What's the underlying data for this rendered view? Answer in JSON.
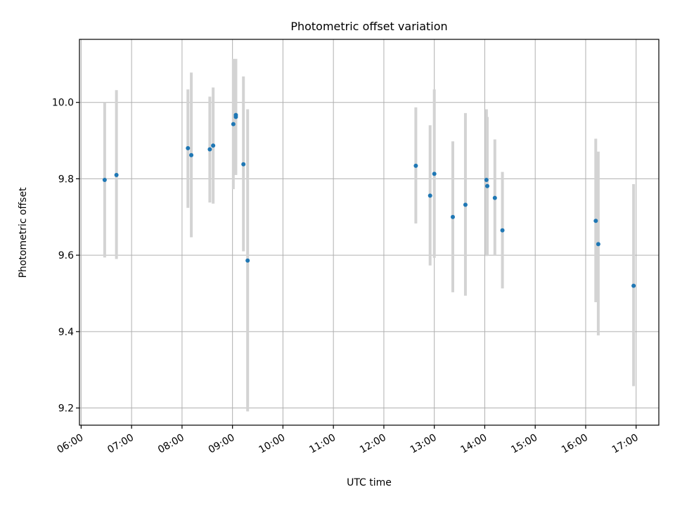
{
  "chart_data": {
    "type": "scatter",
    "title": "Photometric offset variation",
    "xlabel": "UTC time",
    "ylabel": "Photometric offset",
    "xlim": [
      "05:58",
      "17:27"
    ],
    "ylim": [
      9.155,
      10.165
    ],
    "x_ticks": [
      "06:00",
      "07:00",
      "08:00",
      "09:00",
      "10:00",
      "11:00",
      "12:00",
      "13:00",
      "14:00",
      "15:00",
      "16:00",
      "17:00"
    ],
    "y_ticks": [
      "9.2",
      "9.4",
      "9.6",
      "9.8",
      "10.0"
    ],
    "grid": true,
    "colors": {
      "point": "#1f77b4",
      "error_bar": "#d3d3d3"
    },
    "points": [
      {
        "x": "06:28",
        "y": 9.797,
        "ylow": 9.594,
        "yhigh": 10.0
      },
      {
        "x": "06:42",
        "y": 9.81,
        "ylow": 9.59,
        "yhigh": 10.032
      },
      {
        "x": "08:07",
        "y": 9.88,
        "ylow": 9.724,
        "yhigh": 10.034
      },
      {
        "x": "08:11",
        "y": 9.862,
        "ylow": 9.647,
        "yhigh": 10.078
      },
      {
        "x": "08:33",
        "y": 9.877,
        "ylow": 9.738,
        "yhigh": 10.015
      },
      {
        "x": "08:37",
        "y": 9.887,
        "ylow": 9.735,
        "yhigh": 10.039
      },
      {
        "x": "09:01",
        "y": 9.943,
        "ylow": 9.773,
        "yhigh": 10.114
      },
      {
        "x": "09:04",
        "y": 9.967,
        "ylow": 9.84,
        "yhigh": 10.113
      },
      {
        "x": "09:04",
        "y": 9.962,
        "ylow": 9.81,
        "yhigh": 10.114
      },
      {
        "x": "09:13",
        "y": 9.838,
        "ylow": 9.61,
        "yhigh": 10.068
      },
      {
        "x": "09:18",
        "y": 9.586,
        "ylow": 9.191,
        "yhigh": 9.982
      },
      {
        "x": "12:38",
        "y": 9.834,
        "ylow": 9.683,
        "yhigh": 9.987
      },
      {
        "x": "12:55",
        "y": 9.756,
        "ylow": 9.573,
        "yhigh": 9.94
      },
      {
        "x": "13:00",
        "y": 9.813,
        "ylow": 9.593,
        "yhigh": 10.034
      },
      {
        "x": "13:22",
        "y": 9.7,
        "ylow": 9.503,
        "yhigh": 9.898
      },
      {
        "x": "13:37",
        "y": 9.732,
        "ylow": 9.494,
        "yhigh": 9.972
      },
      {
        "x": "14:02",
        "y": 9.797,
        "ylow": 9.598,
        "yhigh": 9.982
      },
      {
        "x": "14:03",
        "y": 9.781,
        "ylow": 9.6,
        "yhigh": 9.962
      },
      {
        "x": "14:12",
        "y": 9.75,
        "ylow": 9.6,
        "yhigh": 9.903
      },
      {
        "x": "14:21",
        "y": 9.665,
        "ylow": 9.513,
        "yhigh": 9.818
      },
      {
        "x": "16:12",
        "y": 9.69,
        "ylow": 9.477,
        "yhigh": 9.905
      },
      {
        "x": "16:15",
        "y": 9.629,
        "ylow": 9.39,
        "yhigh": 9.871
      },
      {
        "x": "16:57",
        "y": 9.52,
        "ylow": 9.257,
        "yhigh": 9.786
      }
    ]
  }
}
